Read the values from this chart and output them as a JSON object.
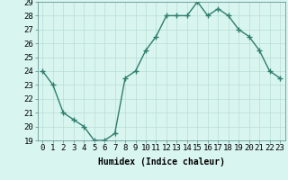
{
  "x": [
    0,
    1,
    2,
    3,
    4,
    5,
    6,
    7,
    8,
    9,
    10,
    11,
    12,
    13,
    14,
    15,
    16,
    17,
    18,
    19,
    20,
    21,
    22,
    23
  ],
  "y": [
    24,
    23,
    21,
    20.5,
    20,
    19,
    19,
    19.5,
    23.5,
    24,
    25.5,
    26.5,
    28,
    28,
    28,
    29,
    28,
    28.5,
    28,
    27,
    26.5,
    25.5,
    24,
    23.5
  ],
  "line_color": "#2e7d6e",
  "marker": "+",
  "marker_size": 4,
  "bg_color": "#d8f5ef",
  "grid_color": "#b8ddd6",
  "xlabel": "Humidex (Indice chaleur)",
  "ylim": [
    19,
    29
  ],
  "yticks": [
    19,
    20,
    21,
    22,
    23,
    24,
    25,
    26,
    27,
    28,
    29
  ],
  "xticks": [
    0,
    1,
    2,
    3,
    4,
    5,
    6,
    7,
    8,
    9,
    10,
    11,
    12,
    13,
    14,
    15,
    16,
    17,
    18,
    19,
    20,
    21,
    22,
    23
  ],
  "xlabel_fontsize": 7,
  "tick_fontsize": 6.5,
  "line_width": 1.0
}
